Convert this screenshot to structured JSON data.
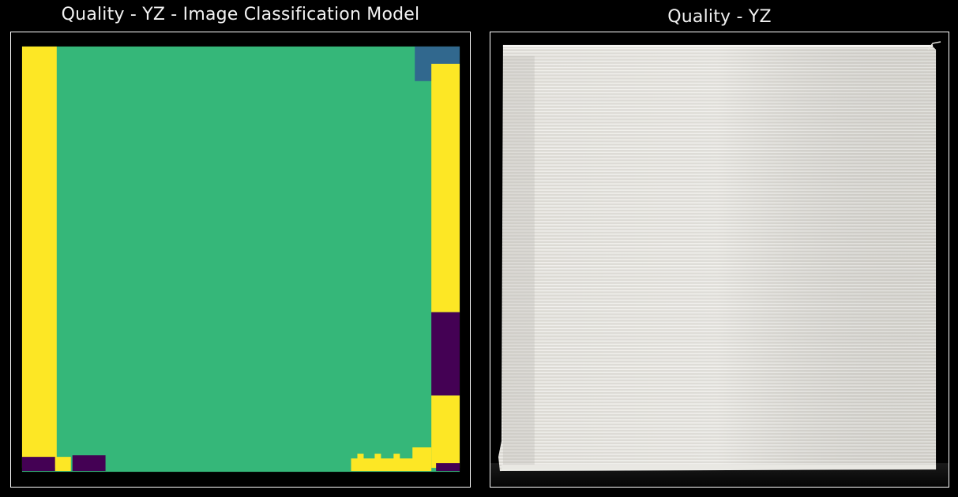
{
  "panels": {
    "left": {
      "title": "Quality - YZ - Image Classification Model",
      "content": "classification-map",
      "palette": {
        "background": "#000000",
        "main_class": "#35b779",
        "edge_class": "#fde725",
        "dark_class": "#440154",
        "blue_class": "#31688e"
      }
    },
    "right": {
      "title": "Quality - YZ",
      "content": "printed-part-photograph",
      "palette": {
        "background": "#000000",
        "part_surface": "#dedcd6",
        "layer_lines": "#f1f0ec"
      }
    }
  },
  "colors": {
    "page_background": "#000000",
    "title_text": "#f2f2f2",
    "frame_border": "#ffffff"
  }
}
